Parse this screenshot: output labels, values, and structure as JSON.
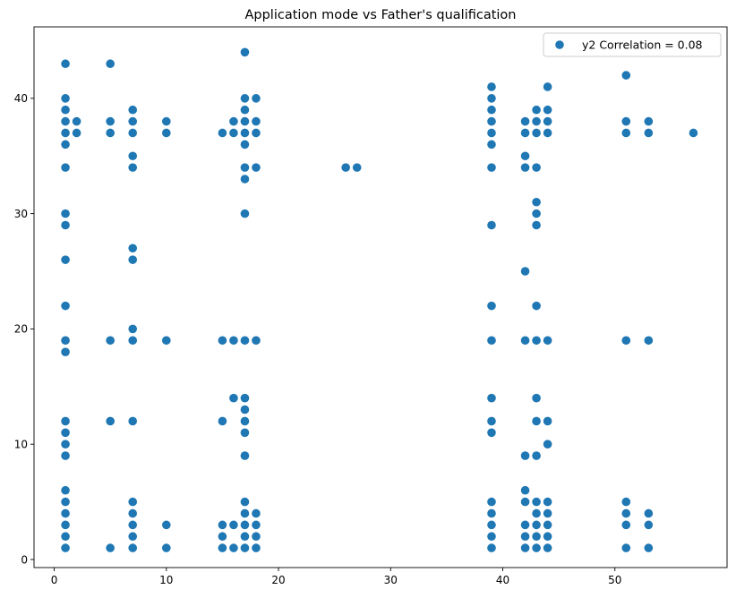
{
  "chart_data": {
    "type": "scatter",
    "title": "Application mode vs Father's qualification",
    "xlabel": "",
    "ylabel": "",
    "xlim": [
      -1.8,
      60
    ],
    "ylim": [
      -0.7,
      46.2
    ],
    "xticks": [
      0,
      10,
      20,
      30,
      40,
      50
    ],
    "yticks": [
      0,
      10,
      20,
      30,
      40
    ],
    "grid": false,
    "legend_position": "top-right",
    "color": "#1f77b4",
    "series": [
      {
        "name": "y2 Correlation = 0.08",
        "points": [
          [
            1,
            1
          ],
          [
            1,
            2
          ],
          [
            1,
            3
          ],
          [
            1,
            4
          ],
          [
            1,
            5
          ],
          [
            1,
            6
          ],
          [
            1,
            9
          ],
          [
            1,
            10
          ],
          [
            1,
            11
          ],
          [
            1,
            12
          ],
          [
            1,
            18
          ],
          [
            1,
            19
          ],
          [
            1,
            22
          ],
          [
            1,
            26
          ],
          [
            1,
            29
          ],
          [
            1,
            30
          ],
          [
            1,
            34
          ],
          [
            1,
            36
          ],
          [
            1,
            37
          ],
          [
            1,
            38
          ],
          [
            1,
            39
          ],
          [
            1,
            40
          ],
          [
            1,
            43
          ],
          [
            2,
            37
          ],
          [
            2,
            38
          ],
          [
            5,
            1
          ],
          [
            5,
            12
          ],
          [
            5,
            19
          ],
          [
            5,
            37
          ],
          [
            5,
            38
          ],
          [
            5,
            43
          ],
          [
            7,
            1
          ],
          [
            7,
            2
          ],
          [
            7,
            3
          ],
          [
            7,
            4
          ],
          [
            7,
            5
          ],
          [
            7,
            12
          ],
          [
            7,
            19
          ],
          [
            7,
            20
          ],
          [
            7,
            26
          ],
          [
            7,
            27
          ],
          [
            7,
            34
          ],
          [
            7,
            35
          ],
          [
            7,
            37
          ],
          [
            7,
            38
          ],
          [
            7,
            39
          ],
          [
            10,
            1
          ],
          [
            10,
            3
          ],
          [
            10,
            19
          ],
          [
            10,
            37
          ],
          [
            10,
            38
          ],
          [
            15,
            1
          ],
          [
            15,
            2
          ],
          [
            15,
            3
          ],
          [
            15,
            12
          ],
          [
            15,
            19
          ],
          [
            15,
            37
          ],
          [
            16,
            1
          ],
          [
            16,
            3
          ],
          [
            16,
            14
          ],
          [
            16,
            19
          ],
          [
            16,
            37
          ],
          [
            16,
            38
          ],
          [
            17,
            1
          ],
          [
            17,
            2
          ],
          [
            17,
            3
          ],
          [
            17,
            4
          ],
          [
            17,
            5
          ],
          [
            17,
            9
          ],
          [
            17,
            11
          ],
          [
            17,
            12
          ],
          [
            17,
            13
          ],
          [
            17,
            14
          ],
          [
            17,
            19
          ],
          [
            17,
            30
          ],
          [
            17,
            33
          ],
          [
            17,
            34
          ],
          [
            17,
            36
          ],
          [
            17,
            37
          ],
          [
            17,
            38
          ],
          [
            17,
            39
          ],
          [
            17,
            40
          ],
          [
            17,
            44
          ],
          [
            18,
            1
          ],
          [
            18,
            2
          ],
          [
            18,
            3
          ],
          [
            18,
            4
          ],
          [
            18,
            19
          ],
          [
            18,
            34
          ],
          [
            18,
            37
          ],
          [
            18,
            38
          ],
          [
            18,
            40
          ],
          [
            26,
            34
          ],
          [
            27,
            34
          ],
          [
            39,
            1
          ],
          [
            39,
            2
          ],
          [
            39,
            3
          ],
          [
            39,
            4
          ],
          [
            39,
            5
          ],
          [
            39,
            11
          ],
          [
            39,
            12
          ],
          [
            39,
            14
          ],
          [
            39,
            19
          ],
          [
            39,
            22
          ],
          [
            39,
            29
          ],
          [
            39,
            34
          ],
          [
            39,
            36
          ],
          [
            39,
            37
          ],
          [
            39,
            38
          ],
          [
            39,
            39
          ],
          [
            39,
            40
          ],
          [
            39,
            41
          ],
          [
            42,
            1
          ],
          [
            42,
            2
          ],
          [
            42,
            3
          ],
          [
            42,
            5
          ],
          [
            42,
            6
          ],
          [
            42,
            9
          ],
          [
            42,
            19
          ],
          [
            42,
            25
          ],
          [
            42,
            34
          ],
          [
            42,
            35
          ],
          [
            42,
            37
          ],
          [
            42,
            38
          ],
          [
            43,
            1
          ],
          [
            43,
            2
          ],
          [
            43,
            3
          ],
          [
            43,
            4
          ],
          [
            43,
            5
          ],
          [
            43,
            9
          ],
          [
            43,
            12
          ],
          [
            43,
            14
          ],
          [
            43,
            19
          ],
          [
            43,
            22
          ],
          [
            43,
            29
          ],
          [
            43,
            30
          ],
          [
            43,
            31
          ],
          [
            43,
            34
          ],
          [
            43,
            37
          ],
          [
            43,
            38
          ],
          [
            43,
            39
          ],
          [
            44,
            1
          ],
          [
            44,
            2
          ],
          [
            44,
            3
          ],
          [
            44,
            4
          ],
          [
            44,
            5
          ],
          [
            44,
            10
          ],
          [
            44,
            12
          ],
          [
            44,
            19
          ],
          [
            44,
            37
          ],
          [
            44,
            38
          ],
          [
            44,
            39
          ],
          [
            44,
            41
          ],
          [
            51,
            1
          ],
          [
            51,
            3
          ],
          [
            51,
            4
          ],
          [
            51,
            5
          ],
          [
            51,
            19
          ],
          [
            51,
            37
          ],
          [
            51,
            38
          ],
          [
            51,
            42
          ],
          [
            53,
            1
          ],
          [
            53,
            3
          ],
          [
            53,
            4
          ],
          [
            53,
            19
          ],
          [
            53,
            37
          ],
          [
            53,
            38
          ],
          [
            57,
            37
          ]
        ]
      }
    ]
  }
}
